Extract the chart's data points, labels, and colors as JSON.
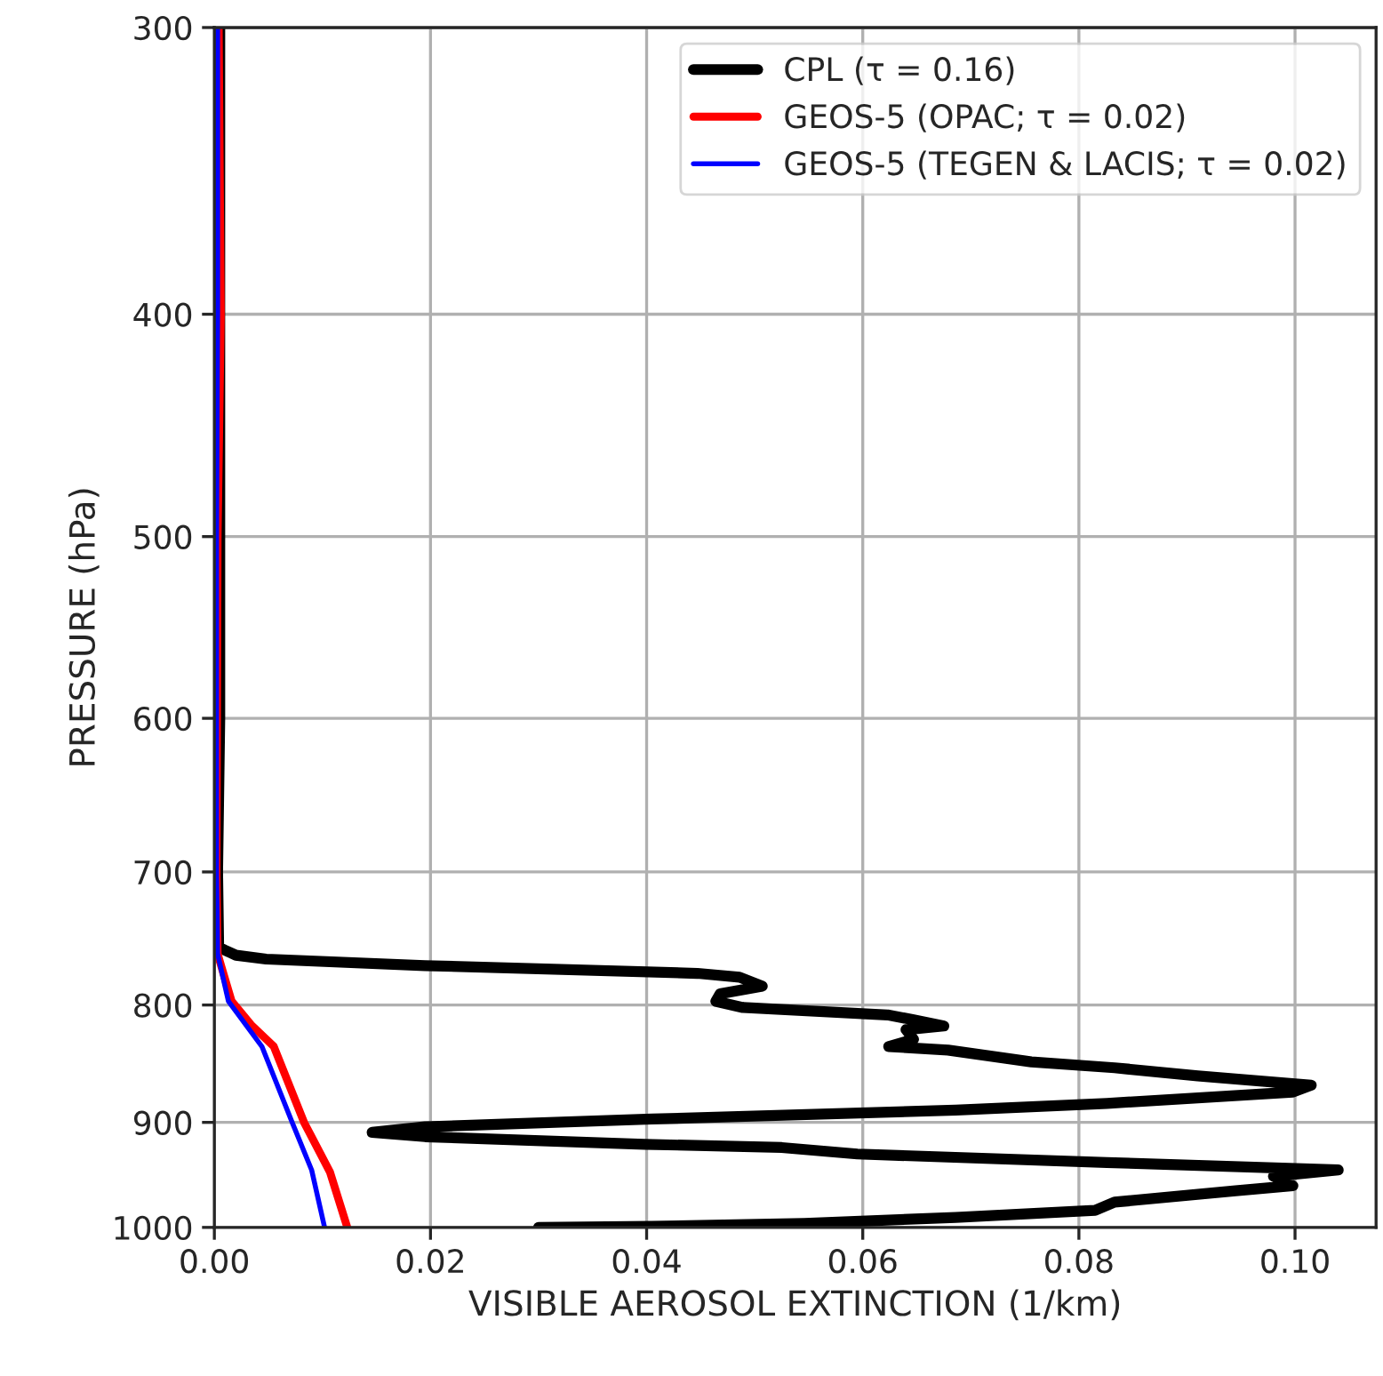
{
  "chart_data": {
    "type": "line",
    "xlabel": "VISIBLE AEROSOL EXTINCTION (1/km)",
    "ylabel": "PRESSURE (hPa)",
    "log": "y",
    "grid": true,
    "legend": "top right",
    "line_style": "solid",
    "xlim": [
      0,
      0.1075
    ],
    "xticks": [
      {
        "value": 0,
        "label": "0.00"
      },
      {
        "value": 0.02,
        "label": "0.02"
      },
      {
        "value": 0.04,
        "label": "0.04"
      },
      {
        "value": 0.06,
        "label": "0.06"
      },
      {
        "value": 0.08,
        "label": "0.08"
      },
      {
        "value": 0.1,
        "label": "0.10"
      }
    ],
    "ylim": [
      1000,
      300
    ],
    "yticks": [
      300,
      400,
      500,
      600,
      700,
      800,
      900,
      1000
    ],
    "series": [
      {
        "name": "CPL (τ = 0.16)",
        "color": "#000000",
        "x": [
          0.0005,
          0.0005,
          0.0003,
          0.0004,
          0.002,
          0.0048,
          0.0195,
          0.0447,
          0.0486,
          0.0507,
          0.0468,
          0.0464,
          0.0489,
          0.0623,
          0.0647,
          0.0675,
          0.064,
          0.0647,
          0.0624,
          0.0679,
          0.0756,
          0.0833,
          0.091,
          0.1015,
          0.0998,
          0.0826,
          0.0686,
          0.0405,
          0.0195,
          0.0146,
          0.0195,
          0.0398,
          0.0525,
          0.0595,
          0.0826,
          0.104,
          0.098,
          0.0998,
          0.0945,
          0.0833,
          0.0815,
          0.0686,
          0.0546,
          0.0405,
          0.03
        ],
        "values": [
          300,
          600,
          700,
          755,
          761,
          764,
          769,
          775,
          778,
          785,
          791,
          797,
          802,
          808,
          812,
          817,
          820,
          828,
          834,
          837,
          847,
          852,
          859,
          867,
          873,
          883,
          889,
          897,
          904,
          909,
          913,
          920,
          923,
          929,
          937,
          944,
          950,
          959,
          964,
          975,
          983,
          990,
          996,
          999,
          1000
        ]
      },
      {
        "name": "GEOS-5 (OPAC; τ = 0.02)",
        "color": "#ff0000",
        "x": [
          0.0004,
          0.0006,
          0.0003,
          0.0002,
          0.0003,
          0.0016,
          0.0034,
          0.0055,
          0.0083,
          0.0107,
          0.0123
        ],
        "values": [
          300,
          400,
          500,
          700,
          760,
          797,
          816,
          834,
          900,
          946,
          1000
        ]
      },
      {
        "name": "GEOS-5 (TEGEN & LACIS; τ = 0.02)",
        "color": "#0000ff",
        "x": [
          0.0003,
          0.0003,
          0.0002,
          0.0002,
          0.0003,
          0.0013,
          0.0044,
          0.0072,
          0.009,
          0.0102
        ],
        "values": [
          300,
          400,
          500,
          700,
          760,
          797,
          834,
          900,
          944,
          1000
        ]
      }
    ]
  }
}
